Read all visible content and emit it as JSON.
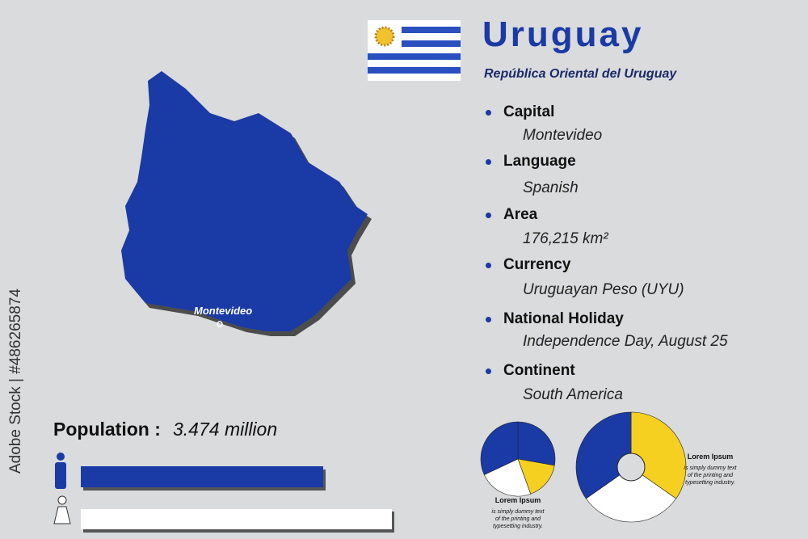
{
  "header": {
    "title": "Uruguay",
    "subtitle": "República Oriental del Uruguay"
  },
  "map": {
    "city": "Montevideo"
  },
  "facts": [
    {
      "label": "Capital",
      "value": "Montevideo"
    },
    {
      "label": "Language",
      "value": "Spanish"
    },
    {
      "label": "Area",
      "value": "176,215 km²"
    },
    {
      "label": "Currency",
      "value": "Uruguayan Peso (UYU)"
    },
    {
      "label": "National Holiday",
      "value": "Independence Day, August 25"
    },
    {
      "label": "Continent",
      "value": "South America"
    }
  ],
  "population": {
    "label": "Population :",
    "value": "3.474 million"
  },
  "pies": [
    {
      "title": "Lorem Ipsum",
      "lines": [
        "is simply dummy text",
        "of the printing and",
        "typesetting industry."
      ]
    },
    {
      "title": "Lorem Ipsum",
      "lines": [
        "is simply dummy text",
        "of the printing and",
        "typesetting industry."
      ]
    }
  ],
  "stock": "Adobe Stock | #486265874"
}
